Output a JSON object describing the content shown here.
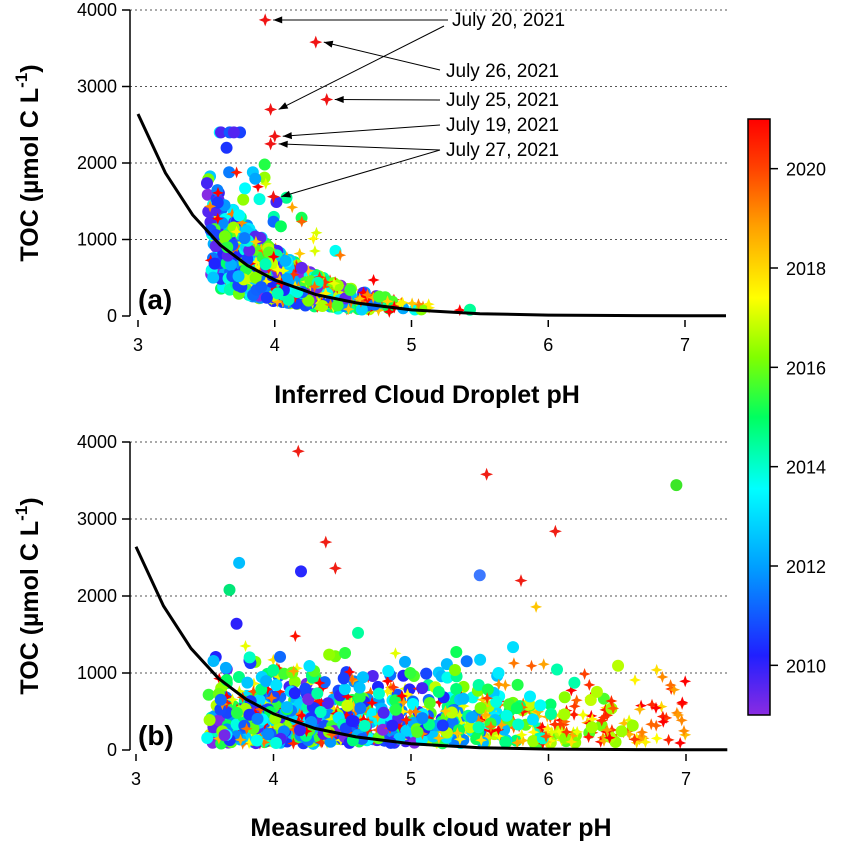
{
  "chart_data": [
    {
      "type": "scatter",
      "panel_label": "(a)",
      "xlabel": "Inferred Cloud Droplet pH",
      "ylabel": "TOC (µmol C L",
      "ylabel_sup": "-1",
      "ylabel_close": ")",
      "xlim": [
        3,
        7.3
      ],
      "ylim": [
        0,
        4000
      ],
      "xticks": [
        "3",
        "4",
        "5",
        "6",
        "7"
      ],
      "yticks": [
        "0",
        "1000",
        "2000",
        "3000",
        "4000"
      ],
      "grid": "horizontal dotted",
      "fit_curve": {
        "x": [
          3.0,
          3.2,
          3.4,
          3.6,
          3.8,
          4.0,
          4.3,
          4.6,
          5.0,
          5.5,
          6.0,
          6.5,
          7.0,
          7.3
        ],
        "y": [
          2640,
          1870,
          1320,
          930,
          660,
          470,
          280,
          170,
          80,
          30,
          12,
          6,
          3,
          2
        ]
      },
      "highlighted_points": [
        {
          "date": "July 20, 2021",
          "x": 3.93,
          "y": 3870
        },
        {
          "date": "July 26, 2021",
          "x": 4.3,
          "y": 3580
        },
        {
          "date": "July 25, 2021",
          "x": 4.38,
          "y": 2830
        },
        {
          "date": "July 20, 2021",
          "x": 3.97,
          "y": 2700
        },
        {
          "date": "July 19, 2021",
          "x": 4.0,
          "y": 2350
        },
        {
          "date": "July 27, 2021",
          "x": 3.97,
          "y": 2250
        },
        {
          "date": "July 27, 2021",
          "x": 3.99,
          "y": 1560
        }
      ],
      "annotations": [
        {
          "text": "July 20, 2021"
        },
        {
          "text": "July 26, 2021"
        },
        {
          "text": "July 25, 2021"
        },
        {
          "text": "July 19, 2021"
        },
        {
          "text": "July 27, 2021"
        }
      ],
      "point_cloud_notes": "several thousand circles (2009-2016) and stars (2017-2021) concentrated between pH 3.5 and 5.7, TOC mostly below 1500"
    },
    {
      "type": "scatter",
      "panel_label": "(b)",
      "xlabel": "Measured bulk cloud water pH",
      "ylabel": "TOC (µmol C L",
      "ylabel_sup": "-1",
      "ylabel_close": ")",
      "xlim": [
        3,
        7.3
      ],
      "ylim": [
        0,
        4000
      ],
      "xticks": [
        "3",
        "4",
        "5",
        "6",
        "7"
      ],
      "yticks": [
        "0",
        "1000",
        "2000",
        "3000",
        "4000"
      ],
      "grid": "horizontal dotted",
      "fit_curve": {
        "x": [
          3.0,
          3.2,
          3.4,
          3.6,
          3.8,
          4.0,
          4.3,
          4.6,
          5.0,
          5.5,
          6.0,
          6.5,
          7.0,
          7.3
        ],
        "y": [
          2640,
          1870,
          1320,
          930,
          660,
          470,
          280,
          170,
          80,
          30,
          12,
          6,
          3,
          2
        ]
      },
      "highlighted_points": [
        {
          "x": 4.18,
          "y": 3880
        },
        {
          "x": 5.55,
          "y": 3580
        },
        {
          "x": 6.93,
          "y": 3440
        },
        {
          "x": 6.05,
          "y": 2840
        },
        {
          "x": 4.38,
          "y": 2700
        },
        {
          "x": 4.2,
          "y": 2320
        },
        {
          "x": 5.5,
          "y": 2270
        },
        {
          "x": 5.8,
          "y": 2200
        },
        {
          "x": 3.75,
          "y": 2430
        },
        {
          "x": 3.68,
          "y": 2080
        },
        {
          "x": 4.45,
          "y": 2360
        }
      ],
      "point_cloud_notes": "several thousand circles and stars spread across pH 3.5 to 7.1, TOC mostly below 1700"
    }
  ],
  "colorbar": {
    "min": 2009,
    "max": 2021,
    "ticks": [
      "2010",
      "2012",
      "2014",
      "2016",
      "2018",
      "2020"
    ],
    "colors": [
      "#8a2be2",
      "#0000ff",
      "#00bfff",
      "#00ffff",
      "#00ff7f",
      "#7fff00",
      "#ffff00",
      "#ffa500",
      "#ff4500",
      "#ff0000"
    ]
  },
  "markers": {
    "early_years": "circle",
    "recent_years": "star"
  }
}
